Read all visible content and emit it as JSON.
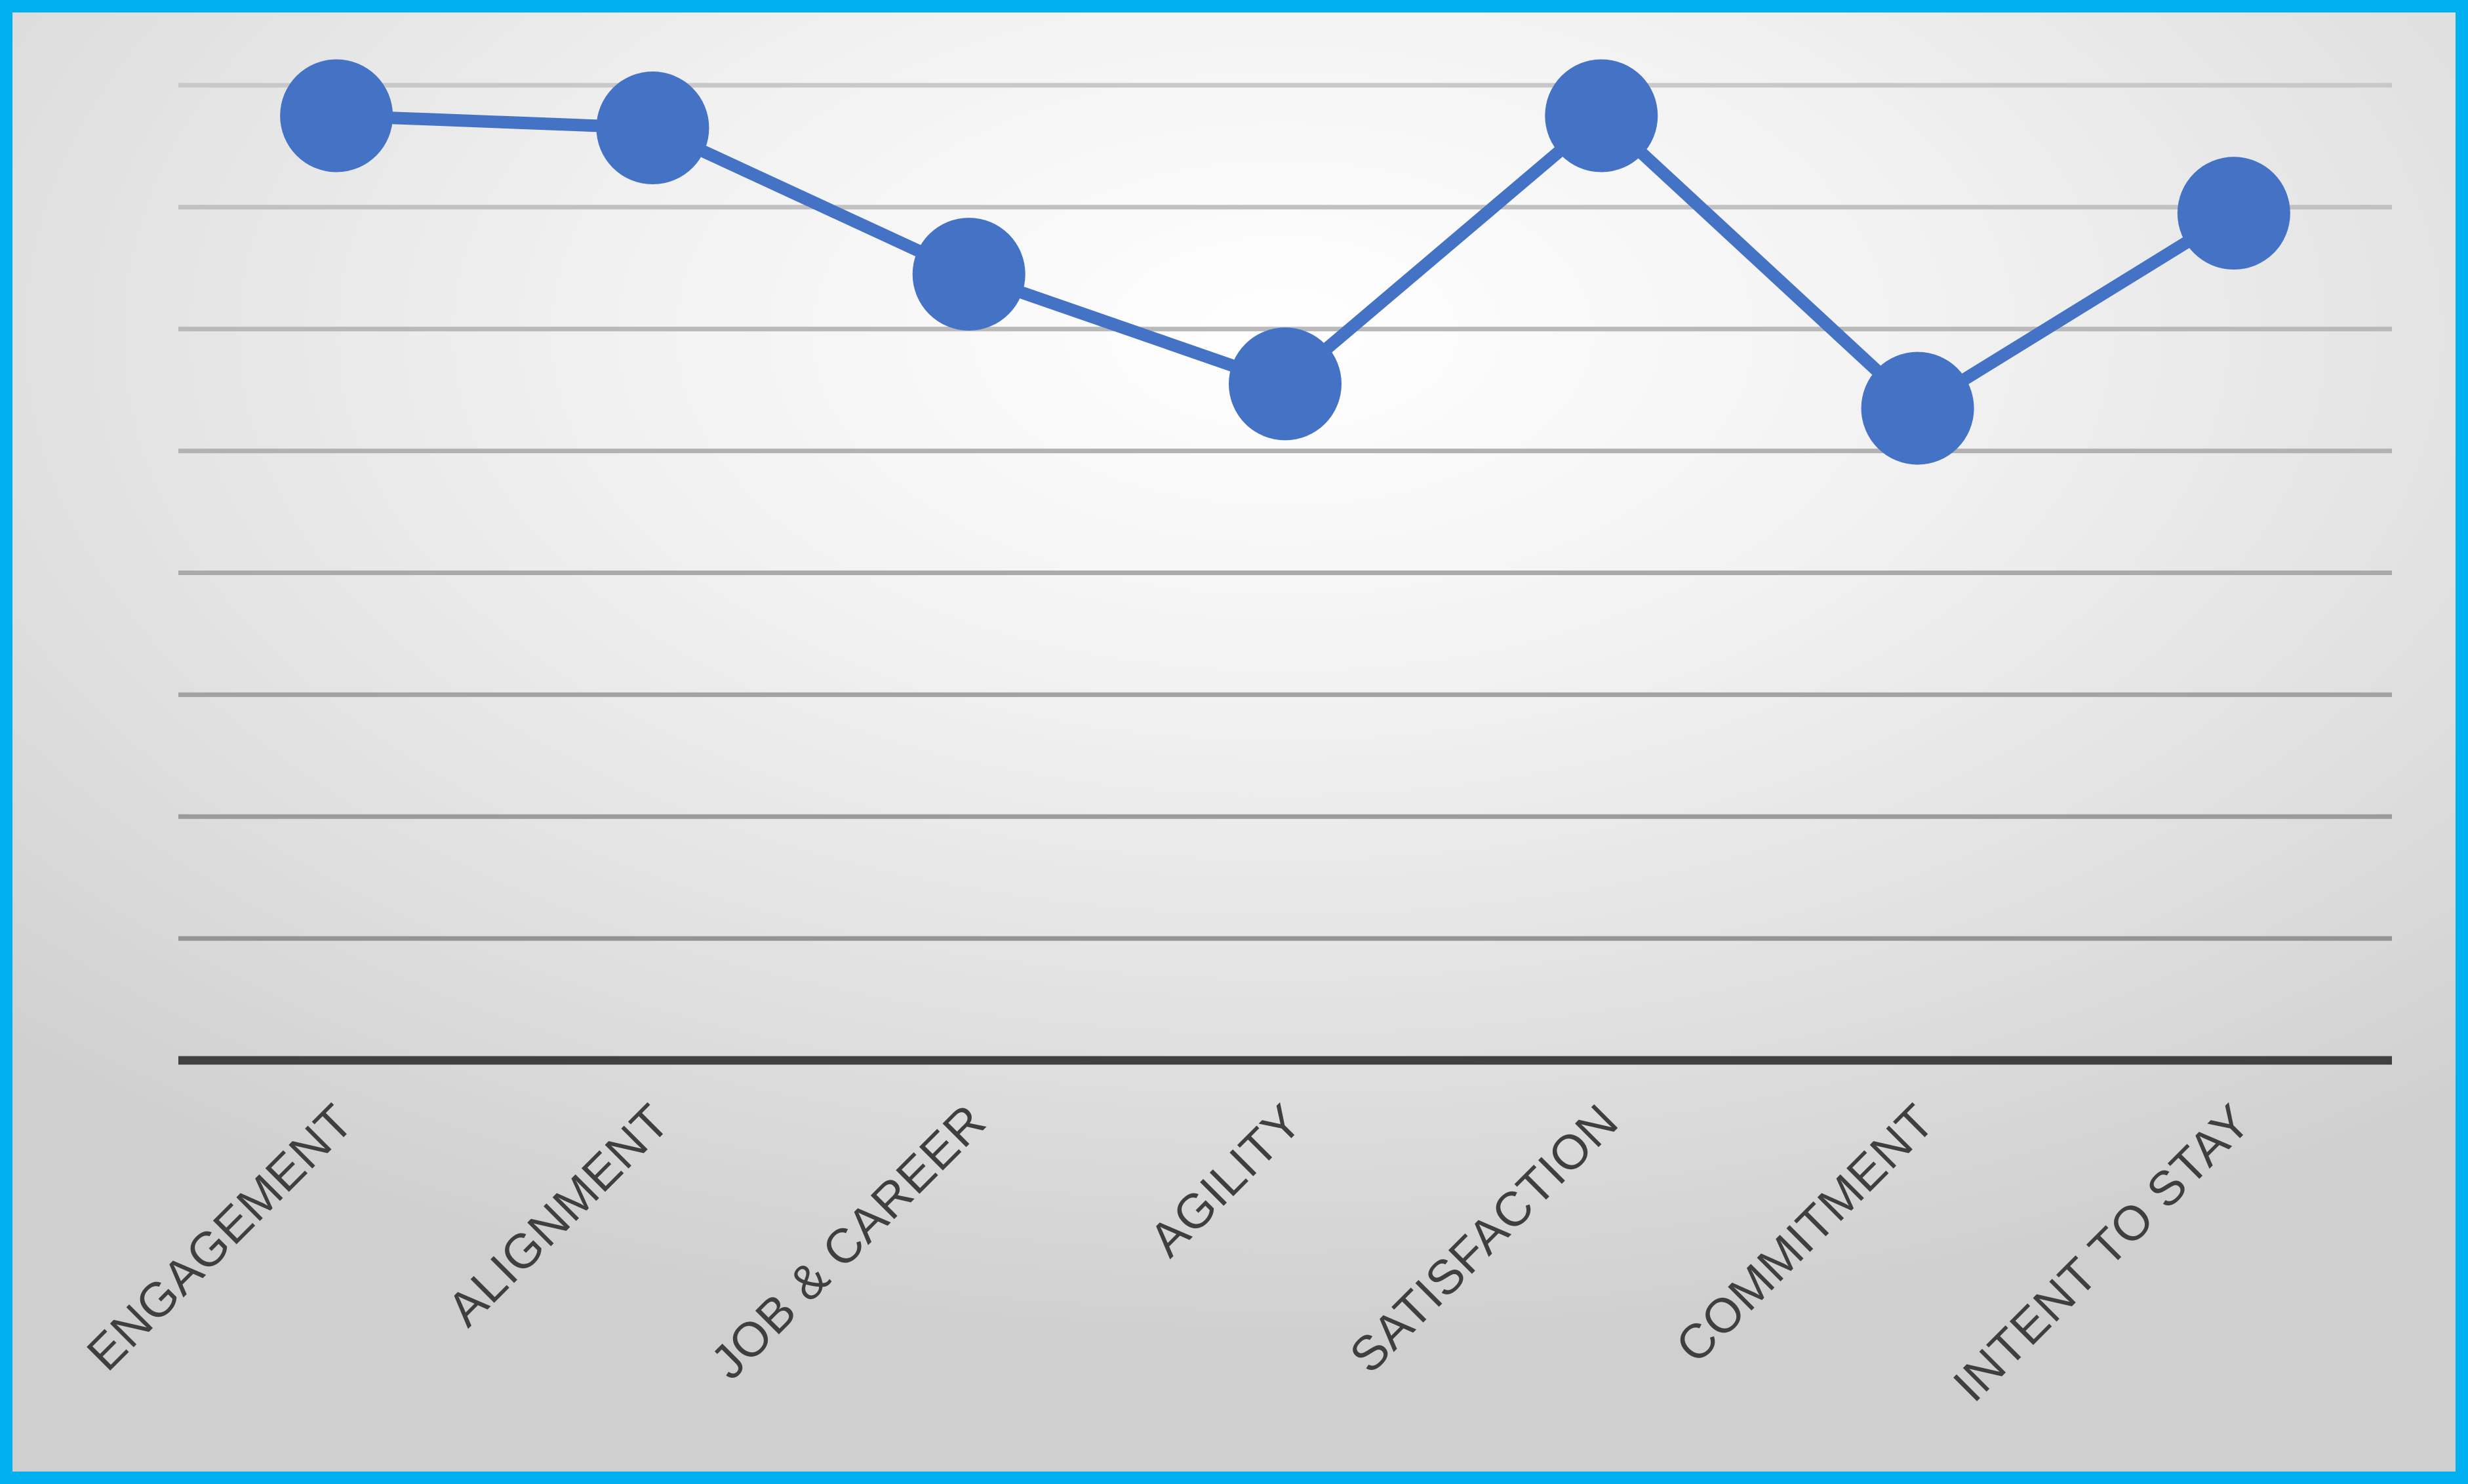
{
  "chart_data": {
    "type": "line",
    "title": "",
    "xlabel": "",
    "ylabel": "",
    "categories": [
      "ENGAGEMENT",
      "ALIGNMENT",
      "JOB & CAREER",
      "AGILITY",
      "SATISFACTION",
      "COMMITMENT",
      "INTENT TO STAY"
    ],
    "series": [
      {
        "values": [
          7.75,
          7.65,
          6.45,
          5.55,
          7.75,
          5.35,
          6.95
        ]
      }
    ],
    "ylim": [
      0,
      8
    ],
    "y_tick_labels_shown": false,
    "grid": true,
    "legend": "none",
    "colors": {
      "series": "#4472c4",
      "grid": "#bfbfbf",
      "axis": "#404040",
      "border": "#00b0f0"
    }
  }
}
